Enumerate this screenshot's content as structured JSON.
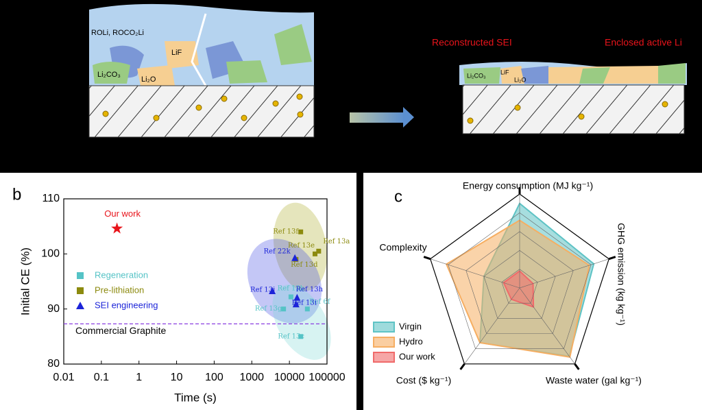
{
  "diagram": {
    "labels": [
      "ROLi, ROCO₂Li",
      "LiF",
      "Li₂CO₃",
      "Li₂O",
      "Li₂CO₃",
      "LiF",
      "Li₂O"
    ],
    "captions": [
      "Reconstructed SEI",
      "Enclosed active Li"
    ]
  },
  "panels": [
    "b",
    "c"
  ],
  "chart_data": [
    {
      "type": "scatter",
      "xlabel": "Time (s)",
      "ylabel": "Initial CE (%)",
      "xscale": "log",
      "xlim": [
        0.01,
        100000
      ],
      "xticks": [
        0.01,
        0.1,
        1,
        10,
        100,
        1000,
        10000,
        100000
      ],
      "ylim": [
        80,
        110
      ],
      "yticks": [
        80,
        90,
        100,
        110
      ],
      "highlight": {
        "name": "Our work",
        "color": "#e8141b",
        "x": 0.26,
        "y": 104.6
      },
      "reference_line": {
        "label": "Commercial Graphite",
        "value": 87.3,
        "color": "#8a3ee0"
      },
      "series": [
        {
          "name": "Regeneration",
          "color": "#55c3c6",
          "marker": "square",
          "labels": [
            "Ref 13b",
            "Ref 13g",
            "Ref 6f",
            "Ref 13c"
          ],
          "x": [
            11000,
            7000,
            30000,
            20000
          ],
          "values": [
            92.2,
            90,
            90,
            85
          ]
        },
        {
          "name": "Pre-lithiation",
          "color": "#8c8a0e",
          "marker": "square",
          "labels": [
            "Ref 13f",
            "Ref 13a",
            "Ref 13e",
            "Ref 13d"
          ],
          "x": [
            20000,
            60000,
            48000,
            15000
          ],
          "values": [
            104,
            100.5,
            100,
            99
          ]
        },
        {
          "name": "SEI engineering",
          "color": "#1c24d8",
          "marker": "triangle",
          "labels": [
            "Ref 22k",
            "Ref 13j",
            "Ref 13h",
            "Ref 13i"
          ],
          "x": [
            14000,
            3500,
            16000,
            15000
          ],
          "values": [
            99.2,
            93.2,
            92,
            90.8
          ]
        }
      ]
    },
    {
      "type": "radar",
      "axes": [
        "Energy consumption (MJ kg⁻¹)",
        "GHG emission (kg kg⁻¹)",
        "Waste water (gal kg⁻¹)",
        "Cost ($ kg⁻¹)",
        "Complexity"
      ],
      "rlim": [
        0,
        1
      ],
      "rticks": [
        0.2,
        0.4,
        0.6,
        0.8,
        1
      ],
      "series": [
        {
          "name": "Virgin",
          "color": "#5ec3c5",
          "values": [
            0.9,
            0.83,
            0.9,
            0.72,
            0.4
          ]
        },
        {
          "name": "Hydro",
          "color": "#f6ae62",
          "values": [
            0.72,
            0.78,
            0.91,
            0.72,
            0.82
          ]
        },
        {
          "name": "Our work",
          "color": "#f06a6a",
          "values": [
            0.18,
            0.15,
            0.25,
            0.15,
            0.18
          ]
        }
      ]
    }
  ]
}
